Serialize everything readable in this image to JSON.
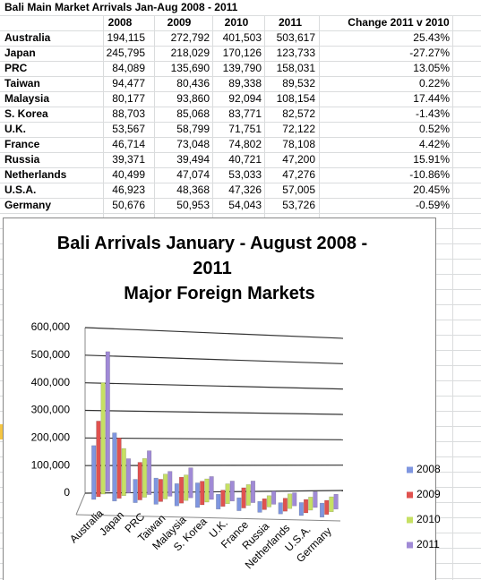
{
  "sheet": {
    "title": "Bali Main Market Arrivals Jan-Aug 2008 - 2011",
    "header": [
      "2008",
      "2009",
      "2010",
      "2011",
      "Change 2011 v 2010"
    ],
    "rows": [
      [
        "Australia",
        "194,115",
        "272,792",
        "401,503",
        "503,617",
        "25.43%"
      ],
      [
        "Japan",
        "245,795",
        "218,029",
        "170,126",
        "123,733",
        "-27.27%"
      ],
      [
        "PRC",
        "84,089",
        "135,690",
        "139,790",
        "158,031",
        "13.05%"
      ],
      [
        "Taiwan",
        "94,477",
        "80,436",
        "89,338",
        "89,532",
        "0.22%"
      ],
      [
        "Malaysia",
        "80,177",
        "93,860",
        "92,094",
        "108,154",
        "17.44%"
      ],
      [
        "S. Korea",
        "88,703",
        "85,068",
        "83,771",
        "82,572",
        "-1.43%"
      ],
      [
        "U.K.",
        "53,567",
        "58,799",
        "71,751",
        "72,122",
        "0.52%"
      ],
      [
        "France",
        "46,714",
        "73,048",
        "74,802",
        "78,108",
        "4.42%"
      ],
      [
        "Russia",
        "39,371",
        "39,494",
        "40,721",
        "47,200",
        "15.91%"
      ],
      [
        "Netherlands",
        "40,499",
        "47,074",
        "53,033",
        "47,276",
        "-10.86%"
      ],
      [
        "U.S.A.",
        "46,923",
        "48,368",
        "47,326",
        "57,005",
        "20.45%"
      ],
      [
        "Germany",
        "50,676",
        "50,953",
        "54,043",
        "53,726",
        "-0.59%"
      ]
    ]
  },
  "chart_data": {
    "type": "bar",
    "title": "Bali Arrivals January - August 2008 - 2011",
    "subtitle": "Major Foreign Markets",
    "categories": [
      "Australia",
      "Japan",
      "PRC",
      "Taiwan",
      "Malaysia",
      "S. Korea",
      "U.K.",
      "France",
      "Russia",
      "Netherlands",
      "U.S.A.",
      "Germany"
    ],
    "series": [
      {
        "name": "2008",
        "color": "#7f96e0",
        "values": [
          194115,
          245795,
          84089,
          94477,
          80177,
          88703,
          53567,
          46714,
          39371,
          40499,
          46923,
          50676
        ]
      },
      {
        "name": "2009",
        "color": "#e0524f",
        "values": [
          272792,
          218029,
          135690,
          80436,
          93860,
          85068,
          58799,
          73048,
          39494,
          47074,
          48368,
          50953
        ]
      },
      {
        "name": "2010",
        "color": "#c6e063",
        "values": [
          401503,
          170126,
          139790,
          89338,
          92094,
          83771,
          71751,
          74802,
          40721,
          53033,
          47326,
          54043
        ]
      },
      {
        "name": "2011",
        "color": "#a08ad6",
        "values": [
          503617,
          123733,
          158031,
          89532,
          108154,
          82572,
          72122,
          78108,
          47200,
          47276,
          57005,
          53726
        ]
      }
    ],
    "ylim": [
      0,
      600000
    ],
    "yticks": [
      0,
      {
        "value": 100000,
        "label": "100,000"
      },
      {
        "value": 200000,
        "label": "200,000"
      },
      {
        "value": 300000,
        "label": "300,000"
      },
      {
        "value": 400000,
        "label": "400,000"
      },
      {
        "value": 500000,
        "label": "500,000"
      },
      {
        "value": 600000,
        "label": "600,000"
      }
    ],
    "grid": true,
    "legend": "right"
  }
}
